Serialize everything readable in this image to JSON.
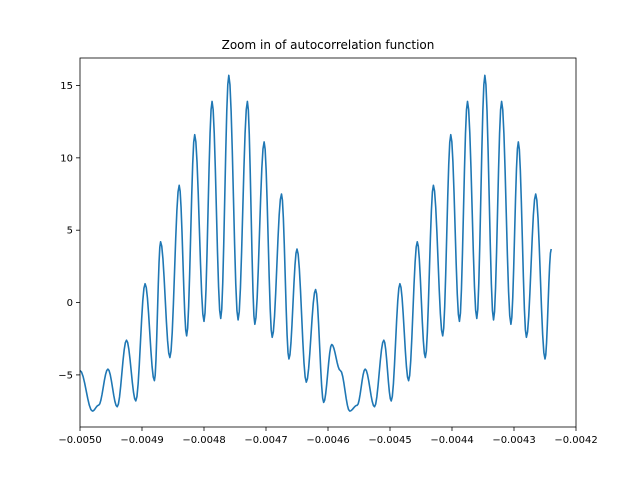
{
  "chart_data": {
    "type": "line",
    "title": "Zoom in of autocorrelation function",
    "xlabel": "",
    "ylabel": "",
    "xlim": [
      -0.005,
      -0.0042
    ],
    "ylim": [
      -8.6,
      16.9
    ],
    "xticks": [
      -0.005,
      -0.0049,
      -0.0048,
      -0.0047,
      -0.0046,
      -0.0045,
      -0.0044,
      -0.0043,
      -0.0042
    ],
    "xtick_labels": [
      "−0.0050",
      "−0.0049",
      "−0.0048",
      "−0.0047",
      "−0.0046",
      "−0.0045",
      "−0.0044",
      "−0.0043",
      "−0.0042"
    ],
    "yticks": [
      -5,
      0,
      5,
      10,
      15
    ],
    "ytick_labels": [
      "−5",
      "0",
      "5",
      "10",
      "15"
    ],
    "grid": false,
    "color": "#1f77b4",
    "series": [
      {
        "name": "",
        "x": [
          -0.005,
          -0.00498,
          -0.00497,
          -0.004955,
          -0.00494,
          -0.004925,
          -0.00491,
          -0.004895,
          -0.00488,
          -0.00487,
          -0.004855,
          -0.00484,
          -0.004828,
          -0.004815,
          -0.0048,
          -0.004787,
          -0.004773,
          -0.00476,
          -0.004745,
          -0.00473,
          -0.004718,
          -0.004703,
          -0.00469,
          -0.004675,
          -0.004663,
          -0.00465,
          -0.004635,
          -0.00462,
          -0.004607,
          -0.004594,
          -0.00458,
          -0.004565,
          -0.004553,
          -0.00454,
          -0.004525,
          -0.00451,
          -0.004498,
          -0.004484,
          -0.00447,
          -0.004456,
          -0.004443,
          -0.00443,
          -0.004415,
          -0.004402,
          -0.004388,
          -0.004375,
          -0.00436,
          -0.004347,
          -0.004333,
          -0.00432,
          -0.004305,
          -0.004293,
          -0.00428,
          -0.004265,
          -0.00425,
          -0.00424
        ],
        "y": [
          -4.7,
          -7.5,
          -7.1,
          -4.6,
          -7.2,
          -2.6,
          -6.8,
          1.3,
          -5.4,
          4.2,
          -3.8,
          8.1,
          -2.3,
          11.6,
          -1.3,
          13.9,
          -1.1,
          15.7,
          -1.2,
          13.9,
          -1.5,
          11.1,
          -2.4,
          7.5,
          -3.9,
          3.7,
          -5.5,
          0.9,
          -6.9,
          -2.9,
          -4.7,
          -7.5,
          -7.1,
          -4.6,
          -7.2,
          -2.6,
          -6.8,
          1.3,
          -5.4,
          4.2,
          -3.8,
          8.1,
          -2.3,
          11.6,
          -1.3,
          13.9,
          -1.1,
          15.7,
          -1.2,
          13.9,
          -1.5,
          11.1,
          -2.4,
          7.5,
          -3.9,
          3.7
        ]
      }
    ]
  }
}
